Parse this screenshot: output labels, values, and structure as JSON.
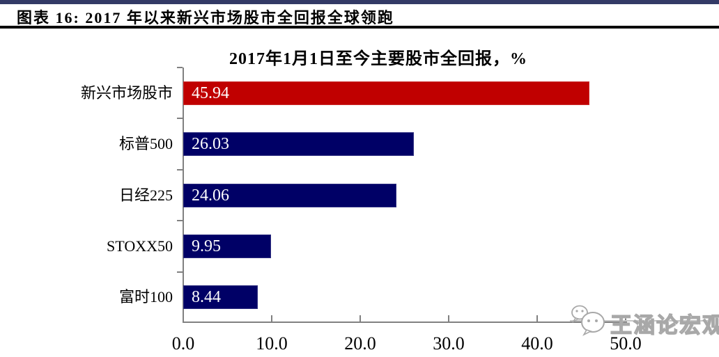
{
  "header": {
    "title": "图表 16: 2017 年以来新兴市场股市全回报全球领跑"
  },
  "chart_data": {
    "type": "bar",
    "orientation": "horizontal",
    "title": "2017年1月1日至今主要股市全回报，%",
    "categories": [
      "新兴市场股市",
      "标普500",
      "日经225",
      "STOXX50",
      "富时100"
    ],
    "values": [
      45.94,
      26.03,
      24.06,
      9.95,
      8.44
    ],
    "value_labels": [
      "45.94",
      "26.03",
      "24.06",
      "9.95",
      "8.44"
    ],
    "bar_colors": [
      "#C00000",
      "#000066",
      "#000066",
      "#000066",
      "#000066"
    ],
    "xlabel": "",
    "ylabel": "",
    "xlim": [
      0,
      50
    ],
    "x_ticks": [
      0,
      10,
      20,
      30,
      40,
      50
    ],
    "x_tick_labels": [
      "0.0",
      "10.0",
      "20.0",
      "30.0",
      "40.0",
      "50.0"
    ],
    "grid": false,
    "legend": "none",
    "value_labels_inside_bars": true
  },
  "watermark": {
    "text": "王涵论宏观"
  },
  "colors": {
    "accent_strip": "#333A66",
    "header_rule": "#000000",
    "bar_red": "#C00000",
    "bar_navy": "#000066",
    "axis_line": "#808080",
    "watermark_gray": "#A8A8A8"
  }
}
